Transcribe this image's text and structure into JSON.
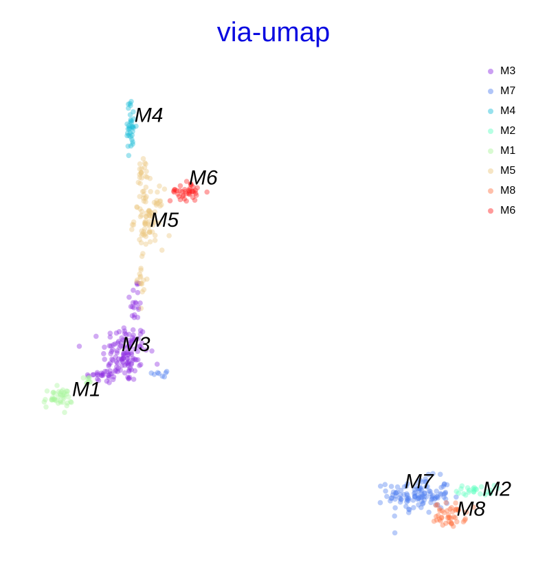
{
  "chart_data": {
    "type": "scatter",
    "title": "via-umap",
    "title_color": "#0a0ae0",
    "xlabel": "",
    "ylabel": "",
    "grid": false,
    "axes_visible": false,
    "xlim": [
      0,
      10
    ],
    "ylim": [
      0,
      10
    ],
    "point_opacity": 0.4,
    "legend_position": "top-right",
    "series": [
      {
        "name": "M3",
        "color": "#8b2be2",
        "clusters": [
          {
            "cx": 2.15,
            "cy": 4.15,
            "sx": 0.22,
            "sy": 0.3,
            "n": 120
          },
          {
            "cx": 1.7,
            "cy": 3.7,
            "sx": 0.18,
            "sy": 0.08,
            "n": 25
          },
          {
            "cx": 2.35,
            "cy": 5.2,
            "sx": 0.06,
            "sy": 0.25,
            "n": 20
          }
        ],
        "label": {
          "text": "M3",
          "x": 2.35,
          "y": 4.3
        }
      },
      {
        "name": "M7",
        "color": "#4f7ff0",
        "clusters": [
          {
            "cx": 7.8,
            "cy": 1.3,
            "sx": 0.3,
            "sy": 0.18,
            "n": 120
          },
          {
            "cx": 2.85,
            "cy": 3.75,
            "sx": 0.08,
            "sy": 0.07,
            "n": 8
          }
        ],
        "label": {
          "text": "M7",
          "x": 7.8,
          "y": 1.55
        }
      },
      {
        "name": "M4",
        "color": "#19bcd8",
        "clusters": [
          {
            "cx": 2.25,
            "cy": 8.7,
            "sx": 0.05,
            "sy": 0.25,
            "n": 35
          }
        ],
        "label": {
          "text": "M4",
          "x": 2.6,
          "y": 8.9
        }
      },
      {
        "name": "M2",
        "color": "#5effc0",
        "clusters": [
          {
            "cx": 8.9,
            "cy": 1.4,
            "sx": 0.18,
            "sy": 0.05,
            "n": 25
          }
        ],
        "label": {
          "text": "M2",
          "x": 9.3,
          "y": 1.4
        }
      },
      {
        "name": "M1",
        "color": "#a8f59a",
        "clusters": [
          {
            "cx": 0.85,
            "cy": 3.25,
            "sx": 0.14,
            "sy": 0.1,
            "n": 40
          },
          {
            "cx": 1.4,
            "cy": 3.6,
            "sx": 0.08,
            "sy": 0.05,
            "n": 8
          }
        ],
        "label": {
          "text": "M1",
          "x": 1.4,
          "y": 3.4
        }
      },
      {
        "name": "M5",
        "color": "#ecc67c",
        "clusters": [
          {
            "cx": 2.6,
            "cy": 6.85,
            "sx": 0.14,
            "sy": 0.3,
            "n": 80
          },
          {
            "cx": 2.5,
            "cy": 7.7,
            "sx": 0.07,
            "sy": 0.18,
            "n": 20
          },
          {
            "cx": 2.45,
            "cy": 5.6,
            "sx": 0.06,
            "sy": 0.2,
            "n": 15
          }
        ],
        "label": {
          "text": "M5",
          "x": 2.9,
          "y": 6.8
        }
      },
      {
        "name": "M8",
        "color": "#ff7242",
        "clusters": [
          {
            "cx": 8.4,
            "cy": 0.9,
            "sx": 0.15,
            "sy": 0.12,
            "n": 45
          }
        ],
        "label": {
          "text": "M8",
          "x": 8.8,
          "y": 1.0
        }
      },
      {
        "name": "M6",
        "color": "#ff1e1e",
        "clusters": [
          {
            "cx": 3.3,
            "cy": 7.4,
            "sx": 0.14,
            "sy": 0.1,
            "n": 40
          }
        ],
        "label": {
          "text": "M6",
          "x": 3.65,
          "y": 7.65
        }
      }
    ]
  }
}
